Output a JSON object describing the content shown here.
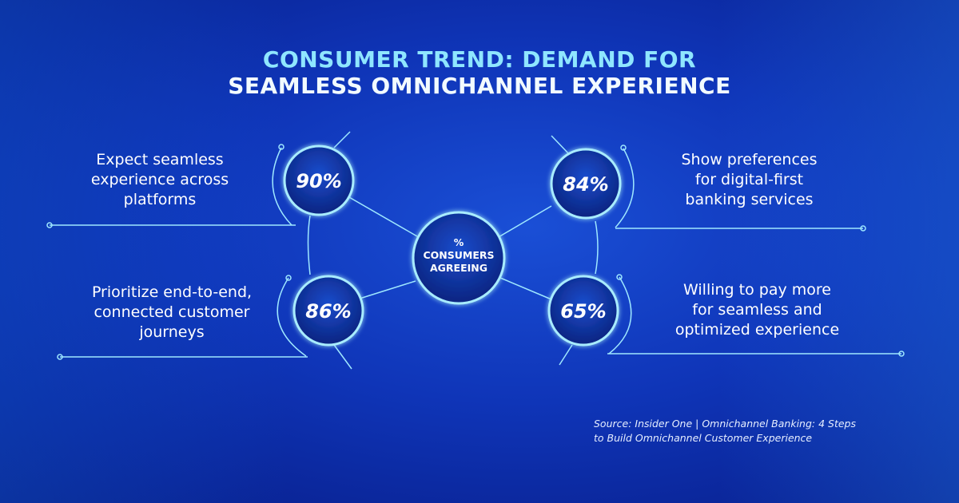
{
  "title": {
    "line1": "CONSUMER TREND: DEMAND FOR",
    "line2": "SEAMLESS OMNICHANNEL EXPERIENCE"
  },
  "center": {
    "line1": "%",
    "line2": "CONSUMERS",
    "line3": "AGREEING"
  },
  "stats": [
    {
      "value": "90%",
      "label": [
        "Expect seamless",
        "experience across",
        "platforms"
      ]
    },
    {
      "value": "84%",
      "label": [
        "Show preferences",
        "for digital-first",
        "banking services"
      ]
    },
    {
      "value": "86%",
      "label": [
        "Prioritize end-to-end,",
        "connected customer",
        "journeys"
      ]
    },
    {
      "value": "65%",
      "label": [
        "Willing to pay more",
        "for seamless and",
        "optimized experience"
      ]
    }
  ],
  "source": {
    "line1": "Source: Insider One | Omnichannel Banking: 4 Steps",
    "line2": "to Build Omnichannel Customer Experience"
  },
  "colors": {
    "accent": "#8fe6ff",
    "background": "#0f35b8"
  }
}
